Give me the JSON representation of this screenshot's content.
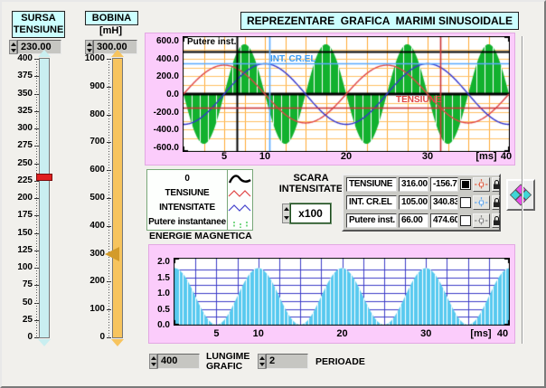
{
  "header": {
    "title": "REPREZENTARE  GRAFICA  MARIMI SINUSOIDALE"
  },
  "sursa": {
    "title_line1": "SURSA",
    "title_line2": "TENSIUNE",
    "value": "230.00",
    "min": 0,
    "max": 400,
    "tick_step": 25,
    "handle_value": 230,
    "track_color": "#c9eef0",
    "handle_color": "#e02020"
  },
  "bobina": {
    "title_line1": "BOBINA",
    "title_line2": "[mH]",
    "value": "300.00",
    "min": 0,
    "max": 1000,
    "tick_step": 100,
    "handle_value": 300,
    "track_color": "#f7c45e",
    "handle_color": "#d39b2a"
  },
  "legend": {
    "items": [
      {
        "label": "0",
        "color": "#000000",
        "shape": "bump"
      },
      {
        "label": "TENSIUNE",
        "color": "#e04545",
        "shape": "zigzag"
      },
      {
        "label": "INTENSITATE",
        "color": "#4444cc",
        "shape": "zigzag"
      },
      {
        "label": "Putere instantanee",
        "color": "#44c855",
        "shape": "bars"
      }
    ]
  },
  "scara": {
    "line1": "SCARA",
    "line2": "INTENSITATE",
    "value": "x100"
  },
  "cursor_table": {
    "rows": [
      {
        "name": "TENSIUNE",
        "x": "316.00",
        "y": "-156.70",
        "checked": true,
        "cursor_color": "#e06a50"
      },
      {
        "name": "INT. CR.EL",
        "x": "105.00",
        "y": "340.83",
        "checked": false,
        "cursor_color": "#6aabee"
      },
      {
        "name": "Putere inst.",
        "x": "66.00",
        "y": "474.60",
        "checked": false,
        "cursor_color": "#8a8a8a"
      }
    ]
  },
  "energie": {
    "title": "ENERGIE MAGNETICA"
  },
  "bottom": {
    "lungime_value": "400",
    "lungime_label1": "LUNGIME",
    "lungime_label2": "GRAFIC",
    "perioade_value": "2",
    "perioade_label": "PERIOADE"
  },
  "chart_data": [
    {
      "id": "main",
      "type": "line",
      "x_range": [
        0,
        40
      ],
      "x_unit": "[ms]",
      "x_ticks": [
        5,
        10,
        20,
        30
      ],
      "x_end_label": "40",
      "y_range": [
        -600,
        600
      ],
      "y_ticks": [
        "600.0",
        "400.0",
        "200.0",
        "0.0",
        "-200.0",
        "-400.0",
        "-600.0"
      ],
      "grid": {
        "x_step_ms": 2.5,
        "y_step": 100,
        "color_v": "#ffaa33",
        "color_h": "#ffc062"
      },
      "zero_line": true,
      "inner_labels": [
        {
          "text": "Putere inst.",
          "color": "#000000"
        },
        {
          "text": "INT. CR.EL",
          "color": "#3b9bf4"
        },
        {
          "text": "TENSIUNE",
          "color": "#e04545"
        }
      ],
      "series": [
        {
          "name": "Putere inst.",
          "kind": "sin",
          "amp": -560,
          "period_ms": 10,
          "phase_deg": 0,
          "fill": true,
          "color": "#12b12e",
          "stripe_ms": 1
        },
        {
          "name": "TENSIUNE",
          "kind": "sin",
          "amp": 325,
          "period_ms": 20,
          "phase_deg": 0,
          "fill": false,
          "color": "#e04545"
        },
        {
          "name": "INT. CR.EL",
          "kind": "sin",
          "amp": 341,
          "period_ms": 20,
          "phase_deg": -90,
          "fill": false,
          "color": "#3535cc"
        }
      ],
      "cursors": [
        {
          "name": "Putere inst.",
          "x_ms": 6.6,
          "y": 474.6,
          "color": "#000000"
        },
        {
          "name": "INT. CR.EL",
          "x_ms": 10.5,
          "y": 340.83,
          "color": "#5aabff"
        },
        {
          "name": "TENSIUNE",
          "x_ms": 31.6,
          "y": -156.7,
          "color": "#cc3333"
        }
      ]
    },
    {
      "id": "energy",
      "type": "area",
      "x_range": [
        0,
        40
      ],
      "x_unit": "[ms]",
      "x_ticks": [
        5,
        10,
        20,
        30
      ],
      "x_end_label": "40",
      "y_range": [
        0,
        2
      ],
      "y_ticks": [
        "2.0",
        "1.5",
        "1.0",
        "0.5",
        "0.0"
      ],
      "grid": {
        "x_step_ms": 2.5,
        "y_step": 0.25,
        "color_v": "#3c3cc8",
        "color_h": "#3c3cc8"
      },
      "zero_line": false,
      "inner_labels": [],
      "series": [
        {
          "name": "ENERGIE MAGNETICA",
          "kind": "sin2",
          "amp": 1.785,
          "period_ms": 20,
          "phase_deg": 90,
          "fill": true,
          "color": "#58c9ef",
          "stripe_ms": 0.5
        }
      ],
      "cursors": []
    }
  ]
}
